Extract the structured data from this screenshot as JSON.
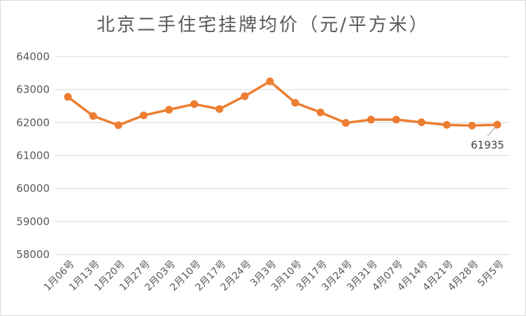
{
  "chart_data": {
    "type": "line",
    "title": "北京二手住宅挂牌均价（元/平方米）",
    "categories": [
      "1月06号",
      "1月13号",
      "1月20号",
      "1月27号",
      "2月03号",
      "2月10号",
      "2月17号",
      "2月24号",
      "3月3号",
      "3月10号",
      "3月17号",
      "3月24号",
      "3月31号",
      "4月07号",
      "4月14号",
      "4月21号",
      "4月28号",
      "5月5号"
    ],
    "series": [
      {
        "values": [
          62780,
          62200,
          61920,
          62220,
          62390,
          62560,
          62410,
          62800,
          63250,
          62600,
          62310,
          61990,
          62090,
          62090,
          62010,
          61930,
          61910,
          61935
        ]
      }
    ],
    "ylim": [
      58000,
      64000
    ],
    "yticks": [
      58000,
      59000,
      60000,
      61000,
      62000,
      63000,
      64000
    ],
    "grid": true,
    "legend": "none",
    "annotations": [
      {
        "index": 17,
        "text": "61935"
      }
    ],
    "colors": {
      "line": "#ED7D31",
      "grid": "#D9D9D9",
      "leader": "#A6A6A6"
    }
  }
}
